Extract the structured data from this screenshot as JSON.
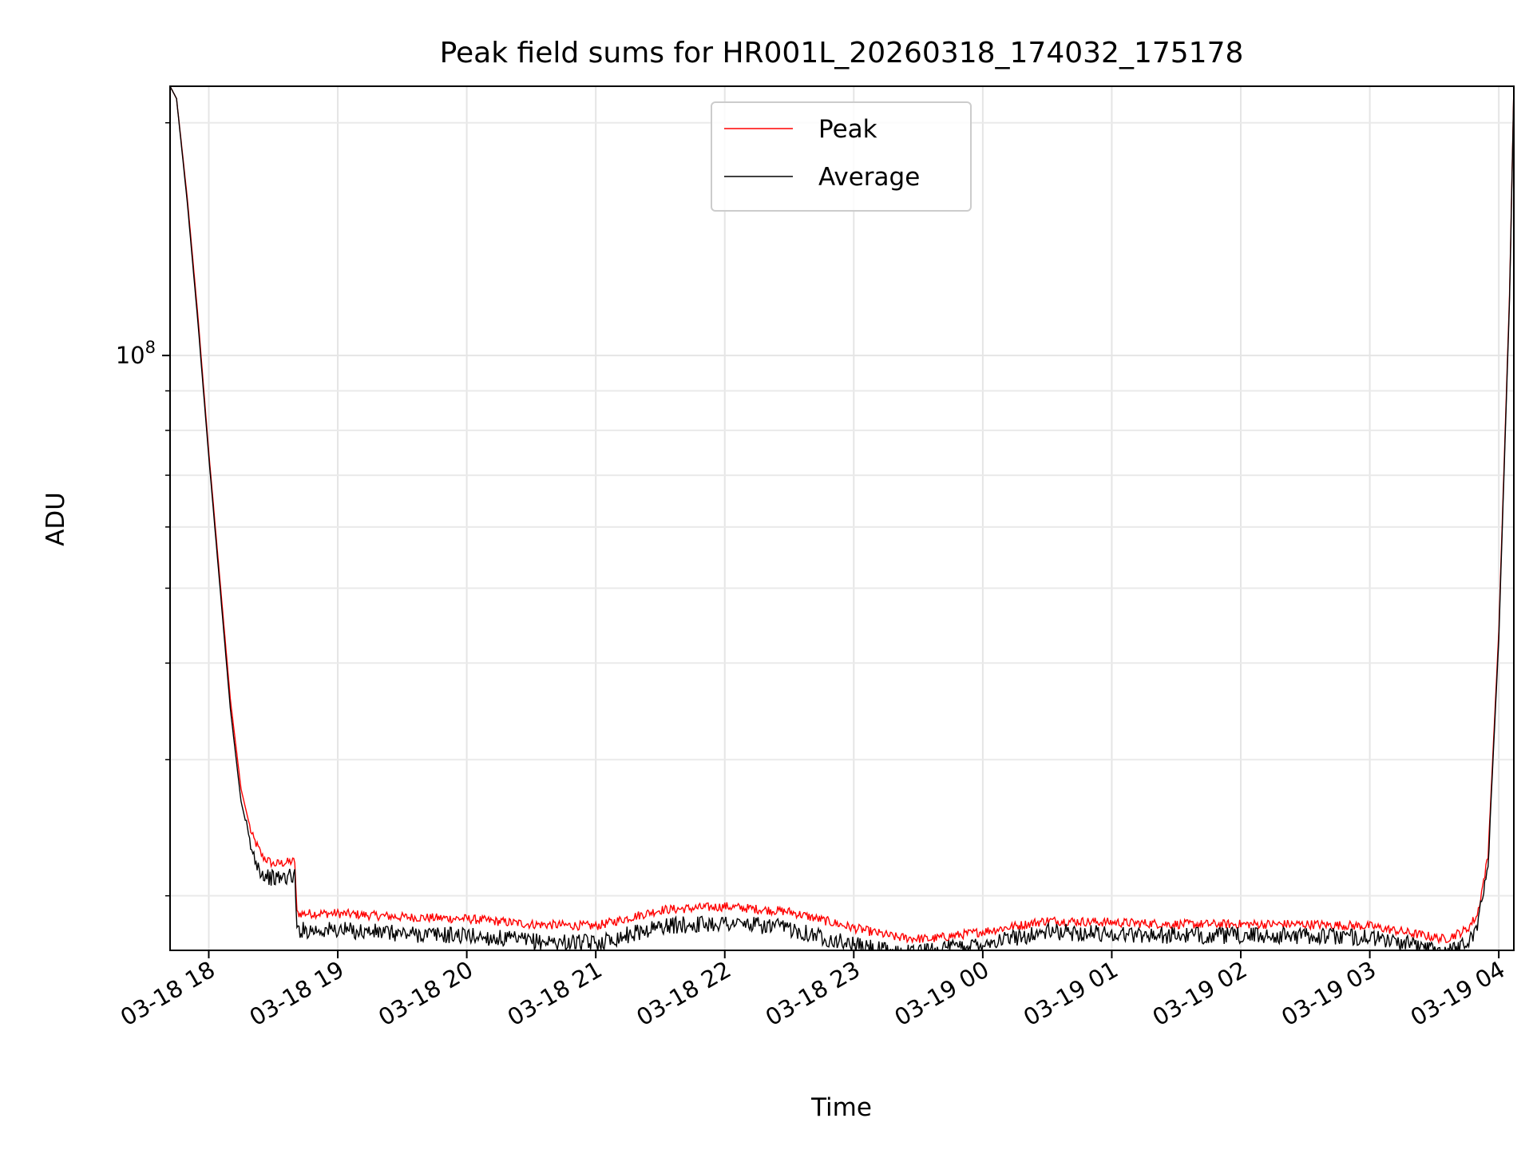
{
  "chart_data": {
    "type": "line",
    "title": "Peak field sums for HR001L_20260318_174032_175178",
    "xlabel": "Time",
    "ylabel": "ADU",
    "yscale": "log",
    "xlim": [
      "03-18 17:42",
      "03-19 04:07"
    ],
    "ylim": [
      17000000,
      223000000
    ],
    "x_ticks": [
      "03-18 18",
      "03-18 19",
      "03-18 20",
      "03-18 21",
      "03-18 22",
      "03-18 23",
      "03-19 00",
      "03-19 01",
      "03-19 02",
      "03-19 03",
      "03-19 04"
    ],
    "y_major_ticks": [
      {
        "value": 100000000,
        "base": "10",
        "exp": "8"
      }
    ],
    "y_minor_ticks": [
      20000000,
      30000000,
      40000000,
      50000000,
      60000000,
      70000000,
      80000000,
      90000000,
      200000000
    ],
    "grid": true,
    "grid_minor": true,
    "legend": {
      "placement": "upper center"
    },
    "x_categories": [
      "03-18 17:42",
      "03-18 17:45",
      "03-18 17:50",
      "03-18 17:55",
      "03-18 18:00",
      "03-18 18:05",
      "03-18 18:10",
      "03-18 18:15",
      "03-18 18:20",
      "03-18 18:25",
      "03-18 18:30",
      "03-18 18:40",
      "03-18 18:41",
      "03-18 19:00",
      "03-18 19:30",
      "03-18 20:00",
      "03-18 20:30",
      "03-18 21:00",
      "03-18 21:30",
      "03-18 22:00",
      "03-18 22:30",
      "03-18 23:00",
      "03-18 23:20",
      "03-18 23:35",
      "03-19 00:00",
      "03-19 00:30",
      "03-19 01:00",
      "03-19 01:30",
      "03-19 02:00",
      "03-19 02:30",
      "03-19 03:00",
      "03-19 03:20",
      "03-19 03:35",
      "03-19 03:45",
      "03-19 03:50",
      "03-19 03:55",
      "03-19 04:00",
      "03-19 04:05",
      "03-19 04:07"
    ],
    "series": [
      {
        "name": "Peak",
        "color": "#ff0000",
        "values": [
          223000000,
          215000000,
          160000000,
          112000000,
          75000000,
          52000000,
          36000000,
          27500000,
          24000000,
          22500000,
          22000000,
          22200000,
          19000000,
          19000000,
          18800000,
          18700000,
          18400000,
          18300000,
          19200000,
          19400000,
          19100000,
          18200000,
          17700000,
          17600000,
          18000000,
          18600000,
          18500000,
          18400000,
          18400000,
          18400000,
          18300000,
          17900000,
          17600000,
          18100000,
          18900000,
          22500000,
          44000000,
          120000000,
          223000000
        ]
      },
      {
        "name": "Average",
        "color": "#000000",
        "values": [
          223000000,
          215000000,
          158000000,
          110000000,
          74000000,
          51000000,
          35000000,
          26500000,
          23000000,
          21500000,
          21200000,
          21400000,
          18200000,
          18200000,
          18000000,
          17900000,
          17600000,
          17500000,
          18400000,
          18600000,
          18300000,
          17400000,
          17000000,
          17100000,
          17500000,
          18100000,
          18000000,
          17900000,
          17900000,
          17900000,
          17800000,
          17400000,
          17100000,
          17500000,
          18400000,
          22000000,
          43000000,
          118000000,
          223000000
        ]
      }
    ]
  }
}
